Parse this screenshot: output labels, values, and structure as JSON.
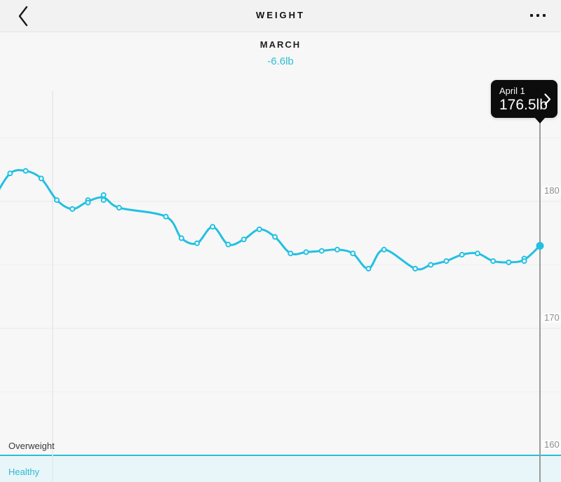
{
  "header": {
    "title": "WEIGHT"
  },
  "subheader": {
    "month": "MARCH",
    "delta": "-6.6lb"
  },
  "tooltip": {
    "date": "April 1",
    "value": "176.5lb"
  },
  "zones": {
    "overweight_label": "Overweight",
    "healthy_label": "Healthy"
  },
  "y_axis": {
    "unit": "lb",
    "ticks": [
      180,
      170,
      160
    ]
  },
  "colors": {
    "accent": "#22c0e2",
    "healthy_band_fill": "#e8f6f9",
    "healthy_band_border": "#2cbcd4",
    "selected_line": "#9b9b9b",
    "grid_major": "#e9e9e9",
    "grid_minor": "#f0f0f0",
    "month_gridline": "#e7e7e7",
    "tooltip_bg": "#0c0c0c"
  },
  "chart_data": {
    "type": "line",
    "title": "Weight trend, March (-6.6lb)",
    "ylabel": "Weight (lb)",
    "unit": "lb",
    "ylim_visible": [
      160,
      186
    ],
    "y_ticks": [
      180,
      170,
      160
    ],
    "grid_step_minor": 5,
    "healthy_max_lb": 160,
    "selected": {
      "date": "Apr 1",
      "label": "April 1",
      "lb": 176.5
    },
    "points": [
      {
        "date": "Feb 25",
        "lb": 180.3
      },
      {
        "date": "Feb 26",
        "lb": 182.2
      },
      {
        "date": "Feb 27",
        "lb": 182.4
      },
      {
        "date": "Feb 28",
        "lb": 181.8
      },
      {
        "date": "Mar 1",
        "lb": 180.1
      },
      {
        "date": "Mar 2",
        "lb": 179.4
      },
      {
        "date": "Mar 3",
        "lb": 180.1
      },
      {
        "date": "Mar 3",
        "lb": 179.9
      },
      {
        "date": "Mar 4",
        "lb": 180.5
      },
      {
        "date": "Mar 4",
        "lb": 180.1
      },
      {
        "date": "Mar 5",
        "lb": 179.5
      },
      {
        "date": "Mar 8",
        "lb": 178.8
      },
      {
        "date": "Mar 9",
        "lb": 177.1
      },
      {
        "date": "Mar 10",
        "lb": 176.7
      },
      {
        "date": "Mar 11",
        "lb": 178.0
      },
      {
        "date": "Mar 12",
        "lb": 176.6
      },
      {
        "date": "Mar 13",
        "lb": 177.0
      },
      {
        "date": "Mar 14",
        "lb": 177.8
      },
      {
        "date": "Mar 15",
        "lb": 177.2
      },
      {
        "date": "Mar 16",
        "lb": 175.9
      },
      {
        "date": "Mar 17",
        "lb": 176.0
      },
      {
        "date": "Mar 18",
        "lb": 176.1
      },
      {
        "date": "Mar 19",
        "lb": 176.2
      },
      {
        "date": "Mar 20",
        "lb": 175.9
      },
      {
        "date": "Mar 21",
        "lb": 174.7
      },
      {
        "date": "Mar 22",
        "lb": 176.2
      },
      {
        "date": "Mar 24",
        "lb": 174.7
      },
      {
        "date": "Mar 25",
        "lb": 175.0
      },
      {
        "date": "Mar 26",
        "lb": 175.3
      },
      {
        "date": "Mar 27",
        "lb": 175.8
      },
      {
        "date": "Mar 28",
        "lb": 175.9
      },
      {
        "date": "Mar 29",
        "lb": 175.3
      },
      {
        "date": "Mar 30",
        "lb": 175.2
      },
      {
        "date": "Mar 31",
        "lb": 175.5
      },
      {
        "date": "Mar 31",
        "lb": 175.3
      },
      {
        "date": "Apr 1",
        "lb": 176.5
      }
    ]
  }
}
